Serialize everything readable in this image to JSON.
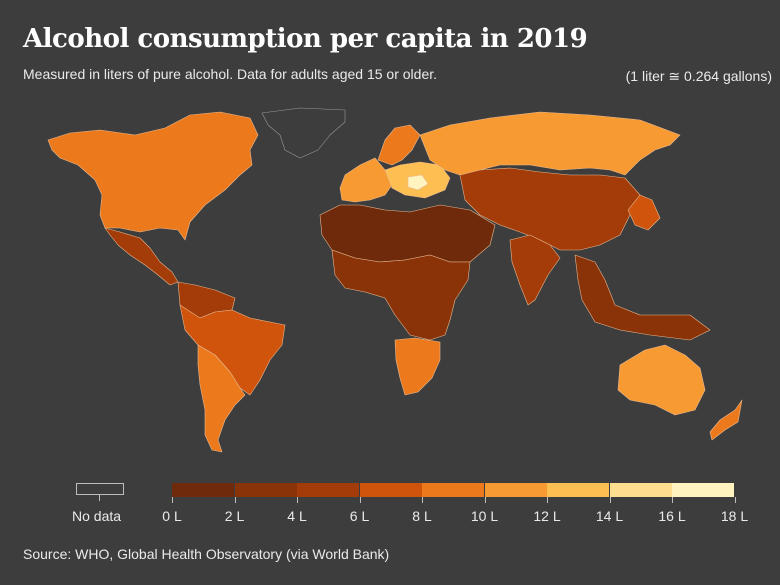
{
  "header": {
    "title": "Alcohol consumption per capita in 2019",
    "subtitle": "Measured in liters of pure alcohol. Data for adults aged 15 or older.",
    "conversion_note": "(1 liter ≅ 0.264 gallons)"
  },
  "legend": {
    "no_data_label": "No data",
    "no_data_color": "#3d3d3d",
    "bins": [
      {
        "from": 0,
        "to": 2,
        "color": "#6e2a0a"
      },
      {
        "from": 2,
        "to": 4,
        "color": "#8a3208"
      },
      {
        "from": 4,
        "to": 6,
        "color": "#a33c08"
      },
      {
        "from": 6,
        "to": 8,
        "color": "#d0540b"
      },
      {
        "from": 8,
        "to": 10,
        "color": "#ec7a1c"
      },
      {
        "from": 10,
        "to": 12,
        "color": "#f79a31"
      },
      {
        "from": 12,
        "to": 14,
        "color": "#fdbf52"
      },
      {
        "from": 14,
        "to": 16,
        "color": "#fedf90"
      },
      {
        "from": 16,
        "to": 18,
        "color": "#fff3c0"
      }
    ],
    "tick_labels": [
      "0 L",
      "2 L",
      "4 L",
      "6 L",
      "8 L",
      "10 L",
      "12 L",
      "14 L",
      "16 L",
      "18 L"
    ]
  },
  "map_regions": [
    {
      "name": "Greenland",
      "bin": null
    },
    {
      "name": "North America (USA, Canada)",
      "bin": 4
    },
    {
      "name": "Mexico & Central America",
      "bin": 2
    },
    {
      "name": "Northern South America",
      "bin": 2
    },
    {
      "name": "Brazil & Peru",
      "bin": 3
    },
    {
      "name": "Argentina & Chile",
      "bin": 4
    },
    {
      "name": "Western Europe",
      "bin": 5
    },
    {
      "name": "Central Europe",
      "bin": 6
    },
    {
      "name": "Romania",
      "bin": 8
    },
    {
      "name": "Scandinavia",
      "bin": 4
    },
    {
      "name": "Russia",
      "bin": 5
    },
    {
      "name": "North Africa & Middle East",
      "bin": 0
    },
    {
      "name": "Central & East Asia (China, Kazakhstan, Mongolia)",
      "bin": 2
    },
    {
      "name": "India",
      "bin": 2
    },
    {
      "name": "Sub-Saharan Africa",
      "bin": 1
    },
    {
      "name": "Southern Africa",
      "bin": 4
    },
    {
      "name": "Japan & Korea",
      "bin": 3
    },
    {
      "name": "Southeast Asia",
      "bin": 1
    },
    {
      "name": "Australia",
      "bin": 5
    },
    {
      "name": "New Zealand",
      "bin": 4
    }
  ],
  "source": "Source: WHO, Global Health Observatory (via World Bank)"
}
